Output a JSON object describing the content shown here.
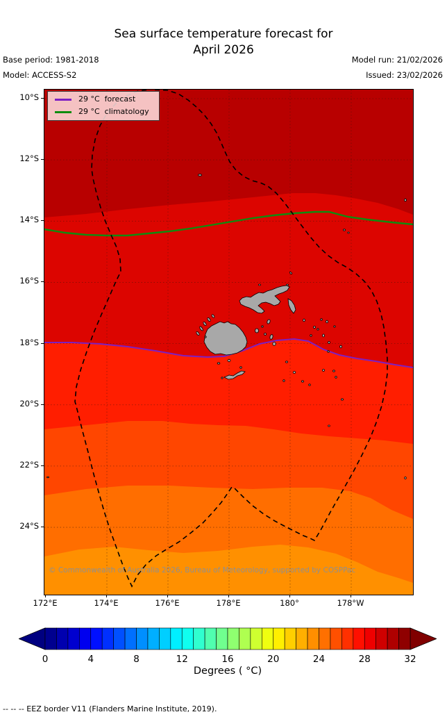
{
  "title": {
    "line1": "Sea surface temperature forecast for",
    "line2": "April 2026"
  },
  "meta": {
    "base_period": "Base period: 1981-2018",
    "model": "Model: ACCESS-S2",
    "model_run": "Model run: 21/02/2026",
    "issued": "Issued: 23/02/2026"
  },
  "legend": {
    "items": [
      {
        "label": "29 °C  forecast",
        "color": "#7d1fc3"
      },
      {
        "label": "29 °C  climatology",
        "color": "#0f8c0f"
      }
    ]
  },
  "map": {
    "copyright": "© Commonwealth of Australia 2026, Bureau of Meteorology, supported by COSPPac",
    "x_tick_labels": [
      "172°E",
      "174°E",
      "176°E",
      "178°E",
      "180°",
      "178°W"
    ],
    "y_tick_labels": [
      "10°S",
      "12°S",
      "14°S",
      "16°S",
      "18°S",
      "20°S",
      "22°S",
      "24°S"
    ]
  },
  "colorbar": {
    "tick_labels": [
      "0",
      "4",
      "8",
      "12",
      "16",
      "20",
      "24",
      "28",
      "32"
    ],
    "label": "Degrees ( °C)"
  },
  "footer": "--  --  --  EEZ border V11 (Flanders Marine Institute, 2019).",
  "chart_data": {
    "type": "filled_contour_map",
    "title": "Sea surface temperature forecast for April 2026",
    "base_period": "1981-2018",
    "model": "ACCESS-S2",
    "model_run": "21/02/2026",
    "issued": "23/02/2026",
    "region": {
      "lon_min": "172°E",
      "lon_max": "176°W",
      "lat_min": "26.2°S",
      "lat_max": "9.7°S",
      "area": "Fiji"
    },
    "x_ticks": [
      "172°E",
      "174°E",
      "176°E",
      "178°E",
      "180°",
      "178°W"
    ],
    "y_ticks": [
      "10°S",
      "12°S",
      "14°S",
      "16°S",
      "18°S",
      "20°S",
      "22°S",
      "24°S"
    ],
    "grid": true,
    "temperature_bands_degC": [
      {
        "range": "30-31",
        "color": "#b80000",
        "extent": "north of ~13.8°S"
      },
      {
        "range": "29-30",
        "color": "#dc0500",
        "extent": "~13.8°S to ~18.2°S"
      },
      {
        "range": "28-29",
        "color": "#ff1e00",
        "extent": "~18.2°S to ~20.9°S"
      },
      {
        "range": "27-28",
        "color": "#ff4600",
        "extent": "~20.9°S to ~23.0°S"
      },
      {
        "range": "26-27",
        "color": "#ff6e00",
        "extent": "~23.0°S to ~25.1°S"
      },
      {
        "range": "25-26",
        "color": "#ff9000",
        "extent": "south of ~25.1°S"
      }
    ],
    "contour_lines": [
      {
        "level_degC": 29,
        "kind": "forecast",
        "color": "#7d1fc3",
        "approx_lat": "18°S to 18.9°S"
      },
      {
        "level_degC": 29,
        "kind": "climatology",
        "color": "#0f8c0f",
        "approx_lat": "14.1°S to 14.8°S"
      }
    ],
    "colorbar": {
      "min": 0,
      "max": 32,
      "cell_step": 1,
      "tick_step": 4,
      "label": "Degrees ( °C)",
      "palette": "jet",
      "extend": "both"
    },
    "overlays": [
      "Fiji islands (gray fill, black outline)",
      "EEZ border V11 (black dashed)"
    ],
    "grid_color": "dotted dark red",
    "land_color": "#a8a8a8"
  }
}
